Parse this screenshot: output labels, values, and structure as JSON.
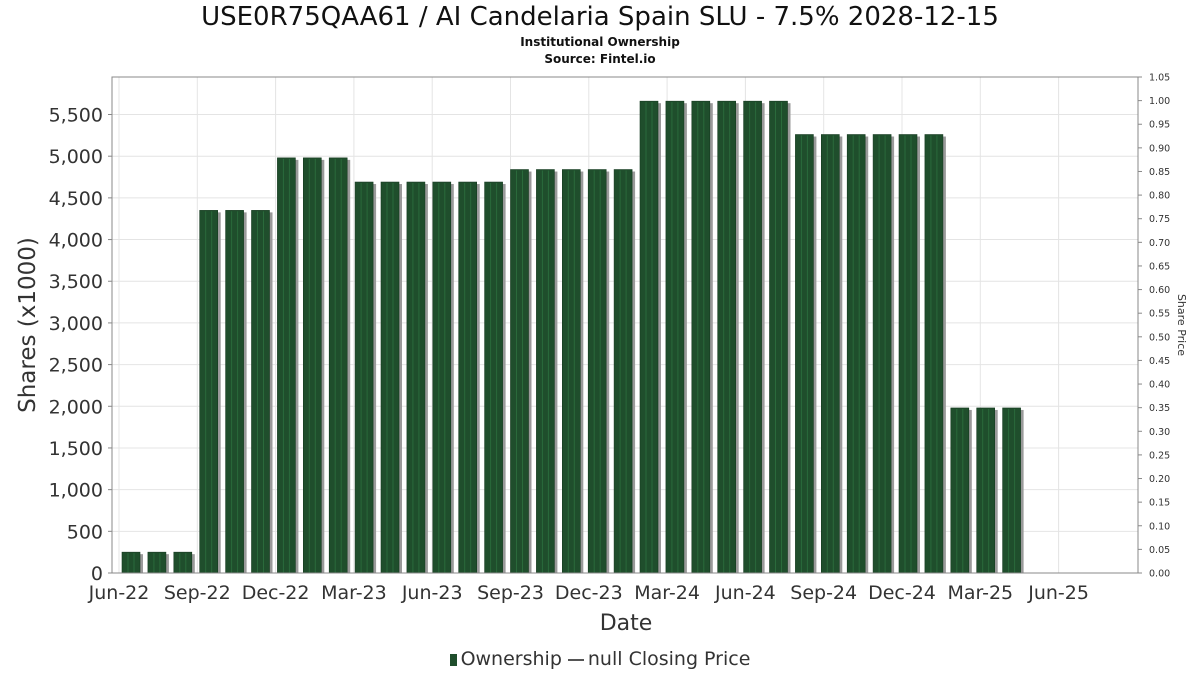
{
  "chart_data": {
    "type": "bar",
    "title": "USE0R75QAA61 / AI Candelaria Spain SLU - 7.5% 2028-12-15",
    "subtitle_lines": [
      "Institutional Ownership",
      "Source: Fintel.io"
    ],
    "xlabel": "Date",
    "ylabel": "Shares (x1000)",
    "y2label": "Share Price",
    "ylim": [
      0,
      5950
    ],
    "y2lim": [
      0,
      1.05
    ],
    "grid": true,
    "legend_position": "bottom-center",
    "x_ticks": [
      "Jun-22",
      "Sep-22",
      "Dec-22",
      "Mar-23",
      "Jun-23",
      "Sep-23",
      "Dec-23",
      "Mar-24",
      "Jun-24",
      "Sep-24",
      "Dec-24",
      "Mar-25",
      "Jun-25"
    ],
    "y_ticks": [
      "0",
      "500",
      "1,000",
      "1,500",
      "2,000",
      "2,500",
      "3,000",
      "3,500",
      "4,000",
      "4,500",
      "5,000",
      "5,500"
    ],
    "y2_ticks": [
      "0.00",
      "0.05",
      "0.10",
      "0.15",
      "0.20",
      "0.25",
      "0.30",
      "0.35",
      "0.40",
      "0.45",
      "0.50",
      "0.55",
      "0.60",
      "0.65",
      "0.70",
      "0.75",
      "0.80",
      "0.85",
      "0.90",
      "0.95",
      "1.00",
      "1.05"
    ],
    "series": [
      {
        "name": "Ownership",
        "color": "#1f4e2c",
        "values": [
          250,
          250,
          250,
          4350,
          4350,
          4350,
          4980,
          4980,
          4980,
          4690,
          4690,
          4690,
          4690,
          4690,
          4690,
          4840,
          4840,
          4840,
          4840,
          4840,
          5660,
          5660,
          5660,
          5660,
          5660,
          5660,
          5260,
          5260,
          5260,
          5260,
          5260,
          5260,
          1980,
          1980,
          1980
        ]
      }
    ],
    "price_series_label": "null Closing Price"
  }
}
